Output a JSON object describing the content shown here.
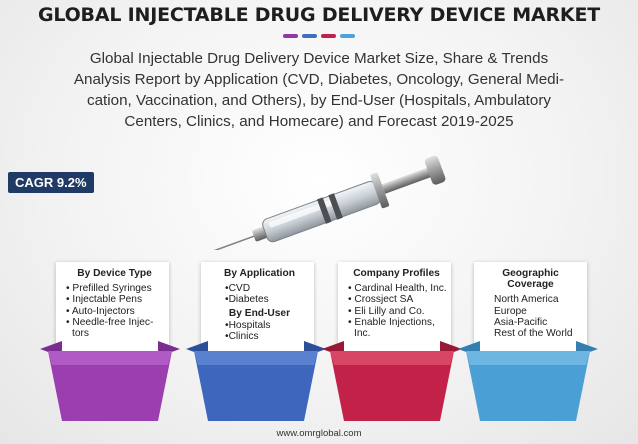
{
  "title": "GLOBAL INJECTABLE DRUG DELIVERY DEVICE MARKET",
  "dash_colors": [
    "#8e3aa6",
    "#3f6fc4",
    "#c4204a",
    "#4da3d6"
  ],
  "subtitle_lines": [
    "Global Injectable Drug Delivery Device Market Size, Share & Trends",
    "Analysis Report by Application (CVD, Diabetes, Oncology, General Medi-",
    "cation, Vaccination, and Others), by End-User (Hospitals, Ambulatory",
    "Centers, Clinics, and Homecare) and Forecast 2019-2025"
  ],
  "cagr": "CAGR 9.2%",
  "cards": [
    {
      "heading": "By Device Type",
      "items": [
        "• Prefilled Syringes",
        "• Injectable Pens",
        "• Auto-Injectors",
        "• Needle-free Injec-",
        "  tors"
      ],
      "color": "#9b3fb0"
    },
    {
      "heading": "By Application",
      "items": [
        "•CVD",
        "•Diabetes"
      ],
      "heading2": "By End-User",
      "items2": [
        "•Hospitals",
        "•Clinics"
      ],
      "color": "#3d66bd"
    },
    {
      "heading": "Company Profiles",
      "items": [
        "• Cardinal Health, Inc.",
        "• Crossject SA",
        "• Eli Lilly and Co.",
        "• Enable Injections,",
        "  Inc."
      ],
      "color": "#c22148"
    },
    {
      "heading": "Geographic Coverage",
      "items": [
        "North America",
        "Europe",
        "Asia-Pacific",
        "Rest of the World"
      ],
      "color": "#4a9fd4"
    }
  ],
  "footer": "www.omrglobal.com"
}
